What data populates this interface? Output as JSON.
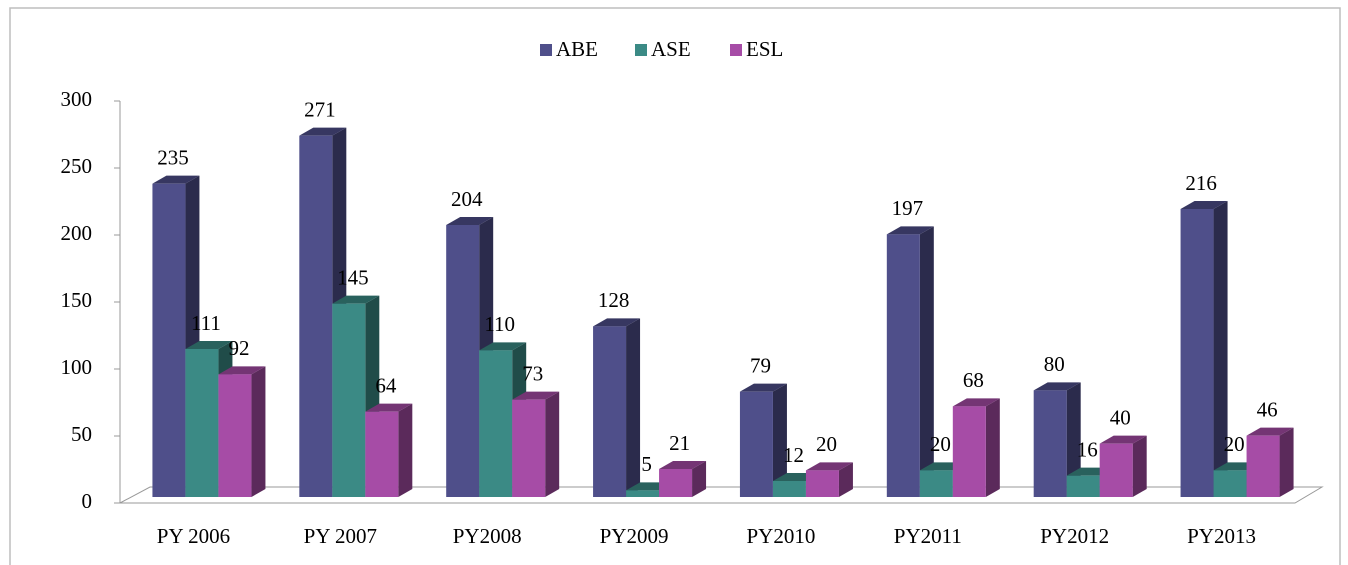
{
  "chart_data": {
    "type": "bar3d",
    "categories": [
      "PY 2006",
      "PY 2007",
      "PY2008",
      "PY2009",
      "PY2010",
      "PY2011",
      "PY2012",
      "PY2013"
    ],
    "series": [
      {
        "name": "ABE",
        "color": "#4f4f8a",
        "values": [
          235,
          271,
          204,
          128,
          79,
          197,
          80,
          216
        ]
      },
      {
        "name": "ASE",
        "color": "#3b8a85",
        "values": [
          111,
          145,
          110,
          5,
          12,
          20,
          16,
          20
        ]
      },
      {
        "name": "ESL",
        "color": "#a64ca6",
        "values": [
          92,
          64,
          73,
          21,
          20,
          68,
          40,
          46
        ]
      }
    ],
    "ylim": [
      0,
      300
    ],
    "yticks": [
      0,
      50,
      100,
      150,
      200,
      250,
      300
    ],
    "grid": false,
    "legend": "top"
  }
}
